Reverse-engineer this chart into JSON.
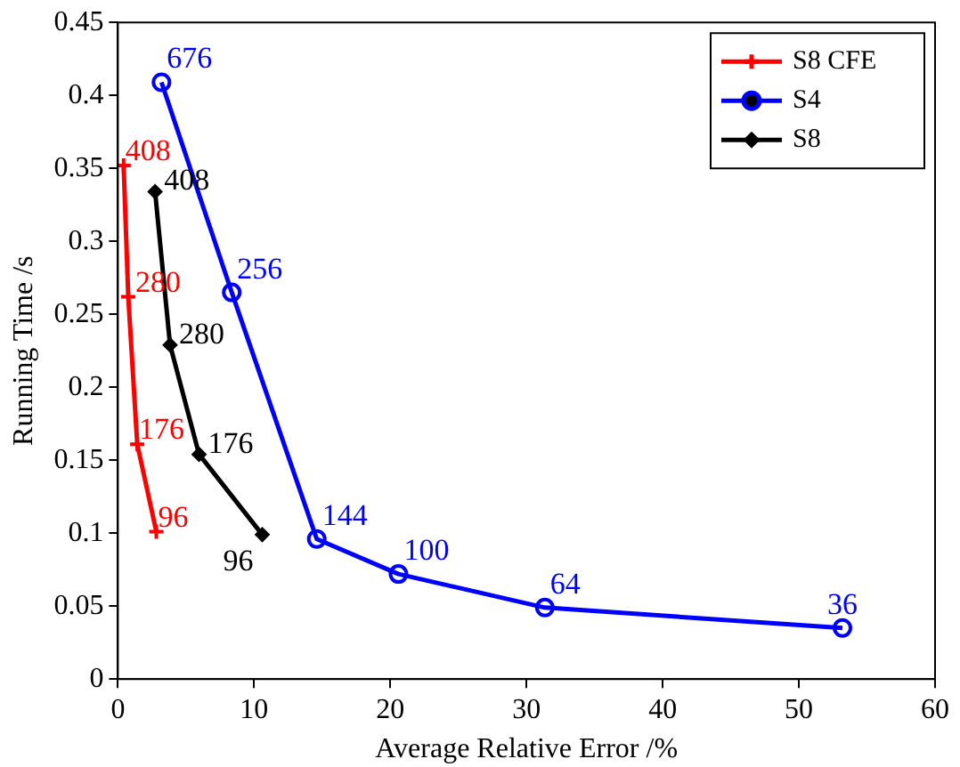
{
  "chart_data": {
    "type": "line",
    "xlabel": "Average Relative Error /%",
    "ylabel": "Running Time /s",
    "xlim": [
      0,
      60
    ],
    "xticks": [
      0,
      10,
      20,
      30,
      40,
      50,
      60
    ],
    "ylim": [
      0,
      0.45
    ],
    "yticks": [
      0,
      0.05,
      0.1,
      0.15,
      0.2,
      0.25,
      0.3,
      0.35,
      0.4,
      0.45
    ],
    "grid": false,
    "legend": "top right",
    "line_style": "solid",
    "series": [
      {
        "name": "S8 CFE",
        "color": "#ff0000",
        "marker": "cross",
        "x": [
          0.42,
          0.76,
          1.42,
          2.82
        ],
        "values": [
          0.352,
          0.262,
          0.161,
          0.101
        ]
      },
      {
        "name": "S4",
        "color": "#0000ff",
        "marker": "circle",
        "x": [
          3.2,
          8.36,
          14.6,
          20.6,
          31.35,
          53.2
        ],
        "values": [
          0.409,
          0.265,
          0.096,
          0.072,
          0.049,
          0.035
        ]
      },
      {
        "name": "S8",
        "color": "#000000",
        "marker": "diamond",
        "x": [
          2.73,
          3.83,
          5.96,
          10.6
        ],
        "values": [
          0.334,
          0.229,
          0.154,
          0.099
        ]
      }
    ],
    "annotations": [
      {
        "text": "408",
        "x": 0.42,
        "y": 0.352
      },
      {
        "text": "280",
        "x": 0.76,
        "y": 0.262
      },
      {
        "text": "176",
        "x": 1.42,
        "y": 0.161
      },
      {
        "text": "96",
        "x": 2.82,
        "y": 0.101
      },
      {
        "text": "676",
        "x": 3.2,
        "y": 0.409
      },
      {
        "text": "256",
        "x": 8.36,
        "y": 0.265
      },
      {
        "text": "144",
        "x": 14.6,
        "y": 0.096
      },
      {
        "text": "100",
        "x": 20.6,
        "y": 0.072
      },
      {
        "text": "64",
        "x": 31.35,
        "y": 0.049
      },
      {
        "text": "36",
        "x": 53.2,
        "y": 0.035
      },
      {
        "text": "408",
        "x": 2.73,
        "y": 0.334
      },
      {
        "text": "280",
        "x": 3.83,
        "y": 0.229
      },
      {
        "text": "176",
        "x": 5.96,
        "y": 0.154
      },
      {
        "text": "96",
        "x": 10.6,
        "y": 0.099
      }
    ]
  }
}
